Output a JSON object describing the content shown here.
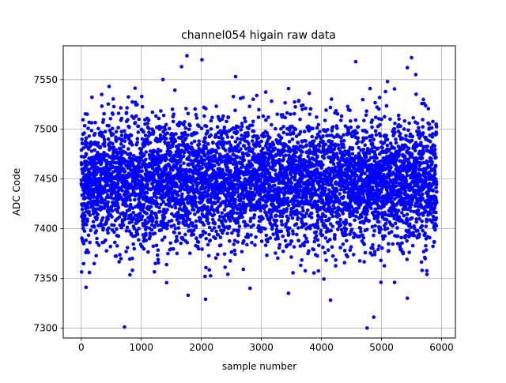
{
  "chart_data": {
    "type": "scatter",
    "title": "channel054 higain raw data",
    "xlabel": "sample number",
    "ylabel": "ADC Code",
    "xlim": [
      -300,
      6230
    ],
    "ylim": [
      7290,
      7584
    ],
    "xticks": [
      0,
      1000,
      2000,
      3000,
      4000,
      5000,
      6000
    ],
    "yticks": [
      7300,
      7350,
      7400,
      7450,
      7500,
      7550
    ],
    "grid": true,
    "marker_color": "#0000ff",
    "n_samples": 5920,
    "distribution": {
      "mean": 7447,
      "std": 31,
      "min": 7300,
      "max": 7574
    },
    "notable_points": [
      {
        "x": 1760,
        "y": 7574
      },
      {
        "x": 5500,
        "y": 7572
      },
      {
        "x": 2010,
        "y": 7570
      },
      {
        "x": 4570,
        "y": 7568
      },
      {
        "x": 1670,
        "y": 7563
      },
      {
        "x": 5430,
        "y": 7562
      },
      {
        "x": 5570,
        "y": 7555
      },
      {
        "x": 2570,
        "y": 7553
      },
      {
        "x": 1360,
        "y": 7550
      },
      {
        "x": 5100,
        "y": 7548
      },
      {
        "x": 3450,
        "y": 7541
      },
      {
        "x": 1780,
        "y": 7333
      },
      {
        "x": 2810,
        "y": 7340
      },
      {
        "x": 3450,
        "y": 7335
      },
      {
        "x": 2070,
        "y": 7329
      },
      {
        "x": 4150,
        "y": 7328
      },
      {
        "x": 5430,
        "y": 7330
      },
      {
        "x": 4870,
        "y": 7311
      },
      {
        "x": 720,
        "y": 7301
      },
      {
        "x": 4760,
        "y": 7300
      },
      {
        "x": 80,
        "y": 7341
      },
      {
        "x": 4990,
        "y": 7346
      }
    ]
  }
}
